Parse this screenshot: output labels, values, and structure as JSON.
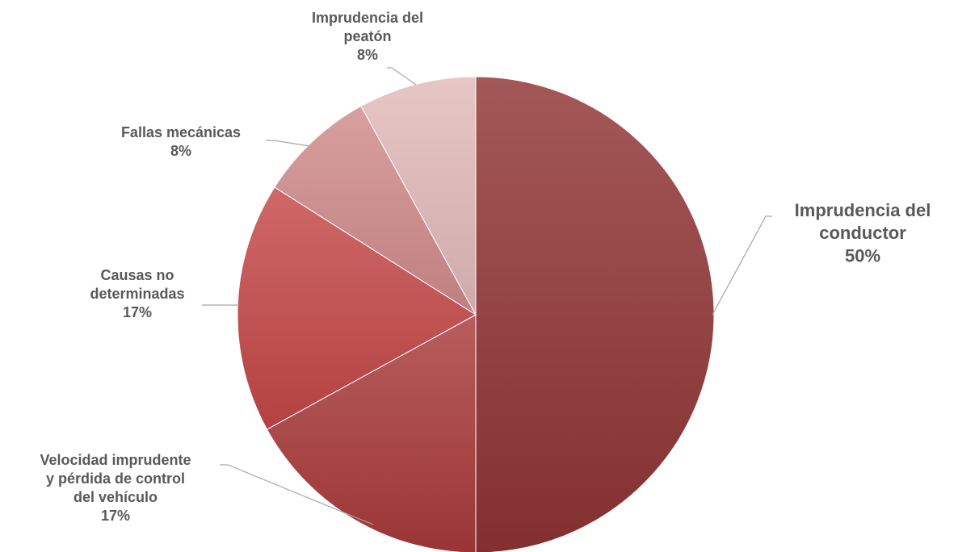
{
  "chart_data": {
    "type": "pie",
    "title": "",
    "slices": [
      {
        "label_lines": [
          "Imprudencia del",
          "conductor"
        ],
        "value": 50,
        "value_label": "50%",
        "color": "#8F3333"
      },
      {
        "label_lines": [
          "Velocidad imprudente",
          "y pérdida de control",
          "del vehículo"
        ],
        "value": 17,
        "value_label": "17%",
        "color": "#A83A3A"
      },
      {
        "label_lines": [
          "Causas no",
          "determinadas"
        ],
        "value": 17,
        "value_label": "17%",
        "color": "#C44747"
      },
      {
        "label_lines": [
          "Fallas mecánicas"
        ],
        "value": 8,
        "value_label": "8%",
        "color": "#D08A8A"
      },
      {
        "label_lines": [
          "Imprudencia del",
          "peatón"
        ],
        "value": 8,
        "value_label": "8%",
        "color": "#E2B9B9"
      }
    ],
    "start_angle_deg": 0,
    "direction": "clockwise",
    "legend": "none",
    "data_labels": "outside-with-leader-lines"
  }
}
